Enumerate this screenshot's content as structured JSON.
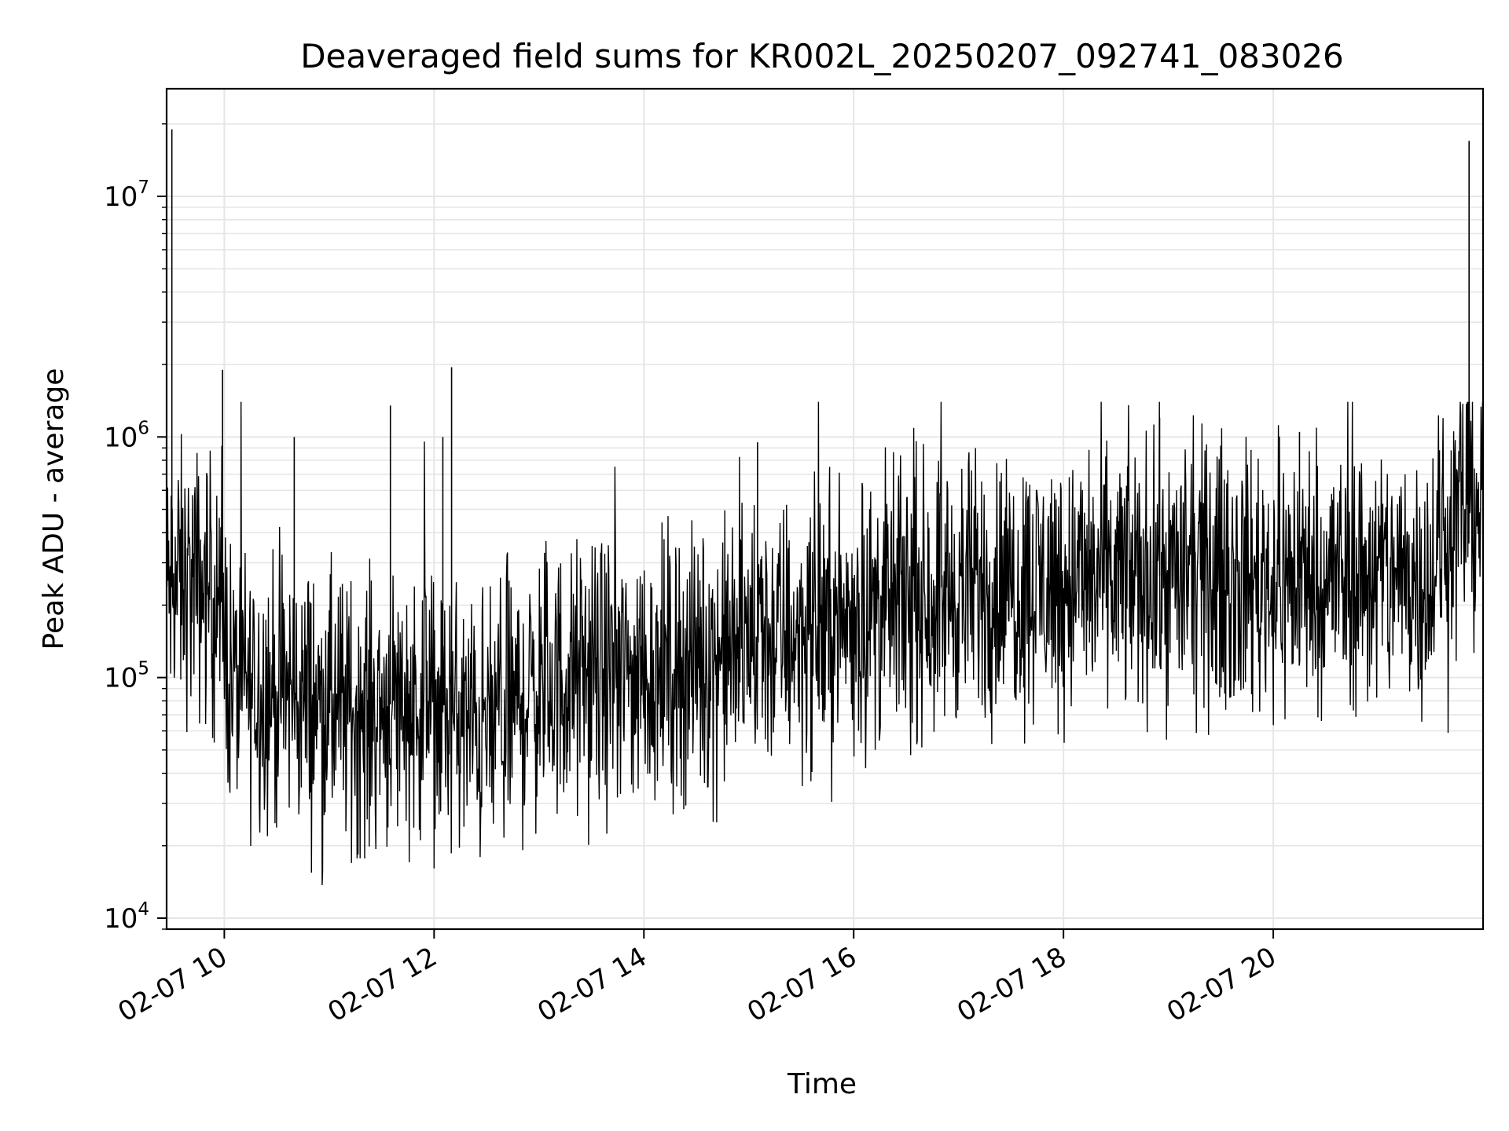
{
  "chart_data": {
    "type": "line",
    "title": "Deaveraged field sums for KR002L_20250207_092741_083026",
    "xlabel": "Time",
    "ylabel": "Peak ADU - average",
    "y_scale": "log",
    "ylim": [
      9000,
      28000000
    ],
    "xlim": [
      "02-07 09:27",
      "02-07 22:00"
    ],
    "grid": true,
    "x_ticks": [
      {
        "label": "02-07 10",
        "time": "02-07 10:00"
      },
      {
        "label": "02-07 12",
        "time": "02-07 12:00"
      },
      {
        "label": "02-07 14",
        "time": "02-07 14:00"
      },
      {
        "label": "02-07 16",
        "time": "02-07 16:00"
      },
      {
        "label": "02-07 18",
        "time": "02-07 18:00"
      },
      {
        "label": "02-07 20",
        "time": "02-07 20:00"
      }
    ],
    "y_ticks": [
      {
        "base": "10",
        "exp": "4",
        "value": 10000
      },
      {
        "base": "10",
        "exp": "5",
        "value": 100000
      },
      {
        "base": "10",
        "exp": "6",
        "value": 1000000
      },
      {
        "base": "10",
        "exp": "7",
        "value": 10000000
      }
    ],
    "line_color": "#000000",
    "grid_color": "#e6e6e6",
    "series": [
      {
        "x": [
          "02-07 09:27",
          "02-07 09:35",
          "02-07 09:45",
          "02-07 09:55",
          "02-07 10:05",
          "02-07 10:20",
          "02-07 10:40",
          "02-07 11:00",
          "02-07 11:20",
          "02-07 11:40",
          "02-07 12:00",
          "02-07 12:15",
          "02-07 12:30",
          "02-07 12:45",
          "02-07 13:00",
          "02-07 13:30",
          "02-07 14:00",
          "02-07 14:30",
          "02-07 15:00",
          "02-07 15:30",
          "02-07 16:00",
          "02-07 16:30",
          "02-07 17:00",
          "02-07 17:30",
          "02-07 18:00",
          "02-07 18:30",
          "02-07 19:00",
          "02-07 19:30",
          "02-07 20:00",
          "02-07 20:30",
          "02-07 21:00",
          "02-07 21:30",
          "02-07 21:45",
          "02-07 21:55"
        ],
        "y": [
          230000,
          250000,
          240000,
          230000,
          95000,
          90000,
          85000,
          75000,
          70000,
          80000,
          75000,
          65000,
          60000,
          75000,
          90000,
          100000,
          105000,
          115000,
          140000,
          155000,
          175000,
          210000,
          230000,
          240000,
          250000,
          260000,
          265000,
          260000,
          255000,
          260000,
          265000,
          270000,
          500000,
          550000
        ]
      }
    ],
    "spikes": [
      {
        "time": "02-07 09:30",
        "value": 19000000
      },
      {
        "time": "02-07 09:59",
        "value": 1900000
      },
      {
        "time": "02-07 10:40",
        "value": 1000000
      },
      {
        "time": "02-07 11:35",
        "value": 1350000
      },
      {
        "time": "02-07 12:05",
        "value": 1000000
      },
      {
        "time": "02-07 12:10",
        "value": 1950000
      },
      {
        "time": "02-07 15:05",
        "value": 950000
      },
      {
        "time": "02-07 18:55",
        "value": 1200000
      },
      {
        "time": "02-07 20:15",
        "value": 1050000
      },
      {
        "time": "02-07 21:52",
        "value": 17000000
      }
    ]
  }
}
